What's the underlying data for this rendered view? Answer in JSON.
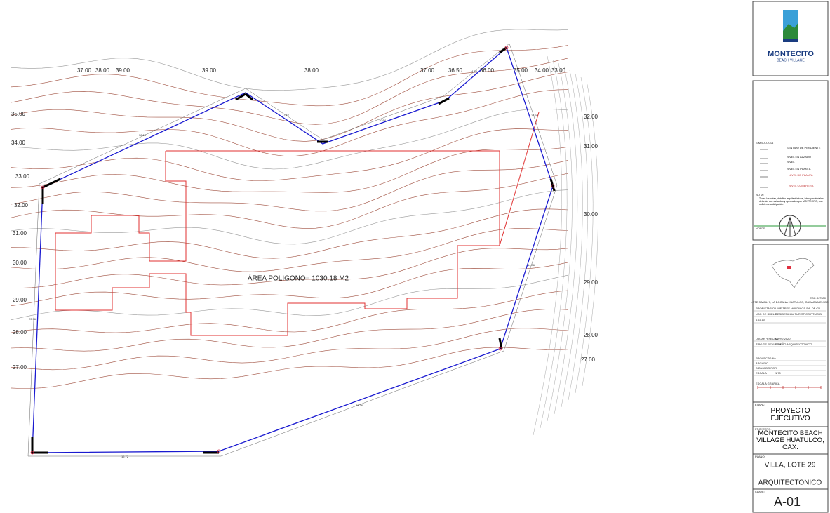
{
  "drawing": {
    "contour_labels": [
      "37.00",
      "38.00",
      "39.00",
      "39.00",
      "38.00",
      "37.00",
      "36.50",
      "36.00",
      "35.00",
      "34.00",
      "33.00",
      "35.00",
      "34.00",
      "33.00",
      "32.00",
      "31.00",
      "30.00",
      "29.00",
      "28.00",
      "27.00",
      "32.00",
      "31.00",
      "30.00",
      "29.00",
      "28.00",
      "27.00"
    ],
    "side_lengths": [
      "38.66",
      "7.42",
      "10.64",
      "4.68",
      "12.96",
      "14.36",
      "38.36",
      "12.72",
      "23.96"
    ],
    "area_label": "ÁREA POLIGONO= 1030.18 M2"
  },
  "title_block": {
    "logo": {
      "name": "MONTECITO",
      "tagline": "BEACH VILLAGE"
    },
    "legend": {
      "title": "SIMBOLOGIA",
      "items": [
        "SENTIDO DE PENDIENTE",
        "NIVEL EN ALZADO",
        "NIVEL",
        "NIVEL EN PLANTA",
        "NIVEL DE PLANTA",
        "NIVEL CUMBRERA"
      ],
      "note_title": "NOTA:",
      "note": "Todas las cotas, detalles arquitectónicos, lotes y materiales, deberán ser revisados y aprobados por MONTECITO, con suficiente anticipación.",
      "north": "NORTE"
    },
    "location": {
      "scale": "ESC. 1:7500",
      "address": "LOTE 3 MZA. 7, LA BOCANA HUATULCO, OAXACA MEXICO."
    },
    "fields": [
      [
        "PROPIETARIO",
        "LIME TREE HOLDINGS SA. DE CV."
      ],
      [
        "USO DE SUELO",
        "RESIDENCIAL TURISTICO RTMO-B"
      ],
      [
        "AREAS",
        ""
      ],
      [
        "LUGAR Y FECHA",
        "MAYO 2020"
      ],
      [
        "TIPO DE REVISION",
        "DISEÑO ARQUITECTONICO"
      ],
      [
        "PROYECTO No.",
        ""
      ],
      [
        "ARCHIVO",
        ""
      ],
      [
        "DIBUJADO POR",
        ""
      ],
      [
        "ESCALA :",
        "1:70"
      ]
    ],
    "graphic_scale": "ESCALA GRAFICA",
    "stage_label": "ETAPA:",
    "stage": "PROYECTO EJECUTIVO",
    "project_label": "PROYECTO:",
    "project": "MONTECITO BEACH VILLAGE HUATULCO, OAX.",
    "plan_label": "PLANO:",
    "plan": "VILLA, LOTE 29",
    "plan_type": "ARQUITECTONICO",
    "key_label": "CLAVE:",
    "key": "A-01"
  }
}
